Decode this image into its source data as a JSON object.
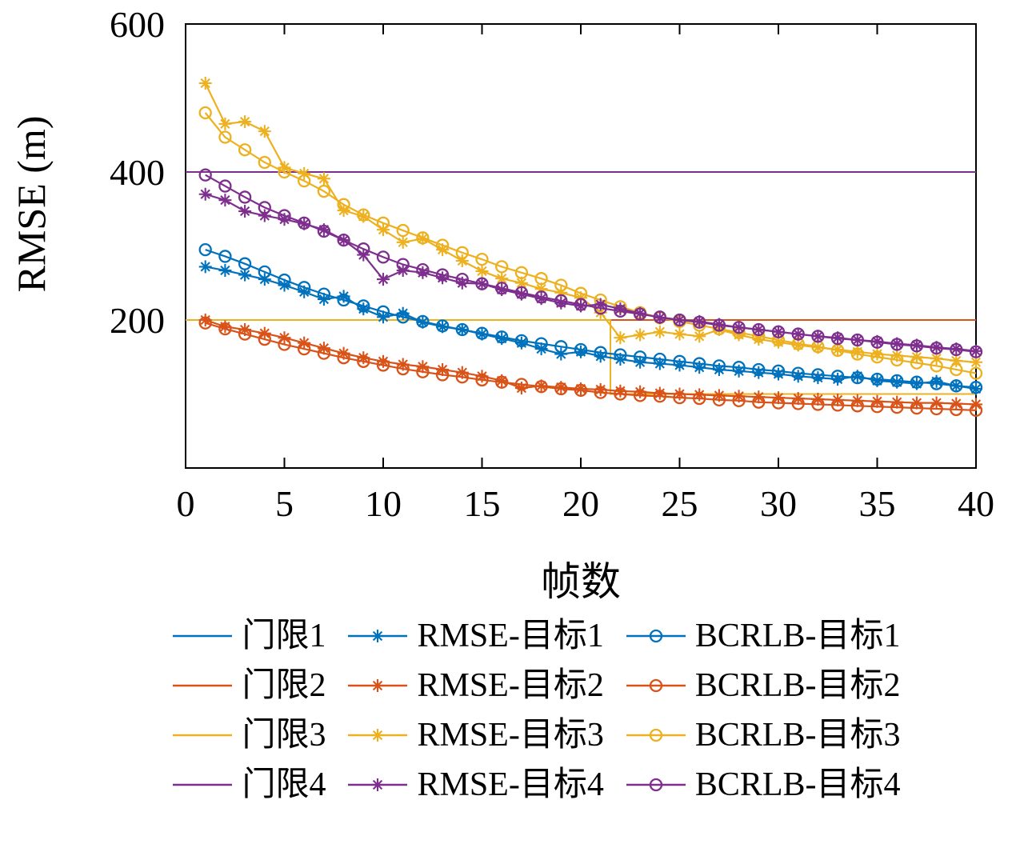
{
  "chart_data": {
    "type": "line",
    "title": "",
    "xlabel": "帧数",
    "ylabel": "RMSE (m)",
    "xlim": [
      0,
      40
    ],
    "ylim": [
      0,
      600
    ],
    "xticks": [
      0,
      5,
      10,
      15,
      20,
      25,
      30,
      35,
      40
    ],
    "yticks": [
      200,
      400,
      600
    ],
    "grid": false,
    "legend_position": "below",
    "colors": {
      "target1": "#0072BD",
      "target2": "#D95319",
      "target3": "#EDB120",
      "target4": "#7E2F8E"
    },
    "x": [
      1,
      2,
      3,
      4,
      5,
      6,
      7,
      8,
      9,
      10,
      11,
      12,
      13,
      14,
      15,
      16,
      17,
      18,
      19,
      20,
      21,
      22,
      23,
      24,
      25,
      26,
      27,
      28,
      29,
      30,
      31,
      32,
      33,
      34,
      35,
      36,
      37,
      38,
      39,
      40
    ],
    "thresholds": [
      {
        "id": "threshold-1",
        "name": "门限1",
        "color": "#0072BD",
        "points": [
          [
            0,
            200
          ],
          [
            40,
            200
          ]
        ]
      },
      {
        "id": "threshold-2",
        "name": "门限2",
        "color": "#D95319",
        "points": [
          [
            0,
            200
          ],
          [
            40,
            200
          ]
        ]
      },
      {
        "id": "threshold-3",
        "name": "门限3",
        "color": "#EDB120",
        "points": [
          [
            0,
            200
          ],
          [
            21.5,
            200
          ],
          [
            21.5,
            100
          ],
          [
            40,
            100
          ]
        ]
      },
      {
        "id": "threshold-4",
        "name": "门限4",
        "color": "#7E2F8E",
        "points": [
          [
            0,
            400
          ],
          [
            40,
            400
          ]
        ]
      }
    ],
    "series": [
      {
        "id": "rmse-target-1",
        "name": "RMSE-目标1",
        "marker": "asterisk",
        "color": "#0072BD",
        "values": [
          272,
          267,
          261,
          255,
          247,
          238,
          228,
          232,
          215,
          204,
          209,
          197,
          191,
          187,
          181,
          175,
          169,
          161,
          154,
          157,
          151,
          147,
          143,
          141,
          139,
          136,
          133,
          131,
          129,
          127,
          124,
          122,
          120,
          124,
          118,
          116,
          114,
          117,
          111,
          107
        ]
      },
      {
        "id": "bcrlb-target-1",
        "name": "BCRLB-目标1",
        "marker": "circle",
        "color": "#0072BD",
        "values": [
          295,
          286,
          276,
          265,
          254,
          244,
          235,
          227,
          219,
          211,
          204,
          198,
          192,
          187,
          182,
          177,
          172,
          168,
          164,
          160,
          156,
          153,
          150,
          147,
          144,
          141,
          138,
          136,
          133,
          131,
          128,
          126,
          124,
          122,
          120,
          118,
          116,
          114,
          111,
          109
        ]
      },
      {
        "id": "rmse-target-2",
        "name": "RMSE-目标2",
        "marker": "asterisk",
        "color": "#D95319",
        "values": [
          200,
          191,
          187,
          182,
          176,
          169,
          162,
          155,
          149,
          144,
          140,
          137,
          133,
          129,
          124,
          118,
          108,
          111,
          109,
          107,
          106,
          104,
          103,
          101,
          100,
          99,
          98,
          97,
          96,
          95,
          94,
          93,
          92,
          91,
          90,
          89,
          88,
          88,
          87,
          86
        ]
      },
      {
        "id": "bcrlb-target-2",
        "name": "BCRLB-目标2",
        "marker": "circle",
        "color": "#D95319",
        "values": [
          196,
          188,
          181,
          174,
          167,
          161,
          155,
          149,
          144,
          139,
          134,
          130,
          126,
          123,
          119,
          116,
          113,
          110,
          107,
          105,
          102,
          100,
          98,
          97,
          95,
          94,
          92,
          91,
          89,
          88,
          87,
          86,
          85,
          84,
          83,
          82,
          81,
          80,
          79,
          78
        ]
      },
      {
        "id": "rmse-target-3",
        "name": "RMSE-目标3",
        "marker": "asterisk",
        "color": "#EDB120",
        "values": [
          520,
          465,
          468,
          455,
          406,
          398,
          391,
          348,
          340,
          322,
          305,
          310,
          295,
          280,
          266,
          256,
          250,
          242,
          237,
          230,
          210,
          176,
          180,
          184,
          181,
          178,
          187,
          180,
          174,
          170,
          166,
          163,
          160,
          157,
          154,
          152,
          150,
          148,
          145,
          143
        ]
      },
      {
        "id": "bcrlb-target-3",
        "name": "BCRLB-目标3",
        "marker": "circle",
        "color": "#EDB120",
        "values": [
          480,
          447,
          430,
          413,
          400,
          388,
          374,
          356,
          342,
          331,
          321,
          311,
          301,
          291,
          282,
          272,
          264,
          256,
          247,
          236,
          227,
          218,
          210,
          203,
          198,
          193,
          188,
          183,
          178,
          173,
          168,
          164,
          159,
          154,
          150,
          146,
          142,
          138,
          133,
          128
        ]
      },
      {
        "id": "rmse-target-4",
        "name": "RMSE-目标4",
        "marker": "asterisk",
        "color": "#7E2F8E",
        "values": [
          370,
          362,
          347,
          341,
          336,
          330,
          322,
          308,
          288,
          255,
          267,
          264,
          257,
          250,
          249,
          241,
          235,
          229,
          223,
          219,
          221,
          215,
          209,
          203,
          200,
          198,
          194,
          190,
          187,
          184,
          181,
          178,
          176,
          173,
          171,
          168,
          166,
          163,
          161,
          158
        ]
      },
      {
        "id": "bcrlb-target-4",
        "name": "BCRLB-目标4",
        "marker": "circle",
        "color": "#7E2F8E",
        "values": [
          396,
          381,
          366,
          352,
          341,
          331,
          320,
          308,
          296,
          285,
          275,
          268,
          261,
          255,
          249,
          243,
          237,
          231,
          226,
          221,
          216,
          212,
          208,
          204,
          200,
          197,
          193,
          190,
          187,
          184,
          181,
          178,
          175,
          173,
          170,
          167,
          165,
          162,
          160,
          157
        ]
      }
    ]
  },
  "legend": {
    "items": [
      {
        "key": "threshold-1",
        "label": "门限1",
        "color": "#0072BD",
        "marker": "none"
      },
      {
        "key": "rmse-target-1",
        "label": "RMSE-目标1",
        "color": "#0072BD",
        "marker": "asterisk"
      },
      {
        "key": "bcrlb-target-1",
        "label": "BCRLB-目标1",
        "color": "#0072BD",
        "marker": "circle"
      },
      {
        "key": "threshold-2",
        "label": "门限2",
        "color": "#D95319",
        "marker": "none"
      },
      {
        "key": "rmse-target-2",
        "label": "RMSE-目标2",
        "color": "#D95319",
        "marker": "asterisk"
      },
      {
        "key": "bcrlb-target-2",
        "label": "BCRLB-目标2",
        "color": "#D95319",
        "marker": "circle"
      },
      {
        "key": "threshold-3",
        "label": "门限3",
        "color": "#EDB120",
        "marker": "none"
      },
      {
        "key": "rmse-target-3",
        "label": "RMSE-目标3",
        "color": "#EDB120",
        "marker": "asterisk"
      },
      {
        "key": "bcrlb-target-3",
        "label": "BCRLB-目标3",
        "color": "#EDB120",
        "marker": "circle"
      },
      {
        "key": "threshold-4",
        "label": "门限4",
        "color": "#7E2F8E",
        "marker": "none"
      },
      {
        "key": "rmse-target-4",
        "label": "RMSE-目标4",
        "color": "#7E2F8E",
        "marker": "asterisk"
      },
      {
        "key": "bcrlb-target-4",
        "label": "BCRLB-目标4",
        "color": "#7E2F8E",
        "marker": "circle"
      }
    ]
  }
}
